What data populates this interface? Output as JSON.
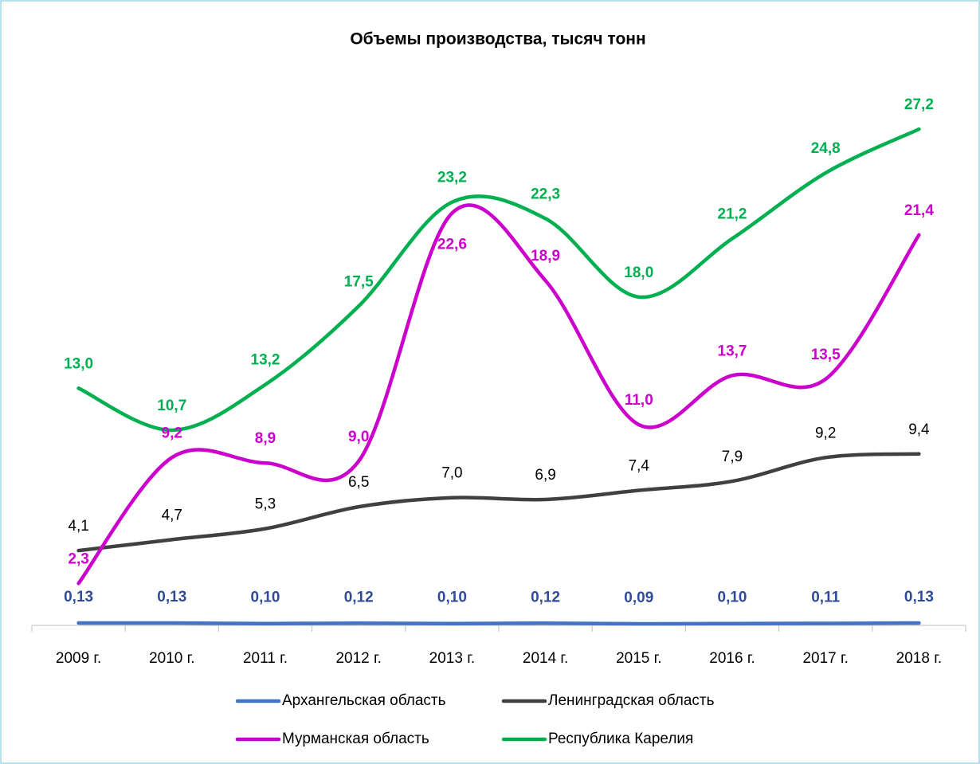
{
  "chart_data": {
    "type": "line",
    "title": "Объемы производства, тысяч тонн",
    "categories": [
      "2009 г.",
      "2010 г.",
      "2011 г.",
      "2012 г.",
      "2013 г.",
      "2014 г.",
      "2015 г.",
      "2016 г.",
      "2017 г.",
      "2018 г."
    ],
    "ylim": [
      0,
      30
    ],
    "legend": "bottom",
    "series": [
      {
        "name": "Архангельская область",
        "color": "#4472c4",
        "label_color": "#2f4b9a",
        "values": [
          0.13,
          0.13,
          0.1,
          0.12,
          0.1,
          0.12,
          0.09,
          0.1,
          0.11,
          0.13
        ],
        "value_labels": [
          "0,13",
          "0,13",
          "0,10",
          "0,12",
          "0,10",
          "0,12",
          "0,09",
          "0,10",
          "0,11",
          "0,13"
        ]
      },
      {
        "name": "Ленинградская область",
        "color": "#404040",
        "label_color": "#000000",
        "values": [
          4.1,
          4.7,
          5.3,
          6.5,
          7.0,
          6.9,
          7.4,
          7.9,
          9.2,
          9.4
        ],
        "value_labels": [
          "4,1",
          "4,7",
          "5,3",
          "6,5",
          "7,0",
          "6,9",
          "7,4",
          "7,9",
          "9,2",
          "9,4"
        ]
      },
      {
        "name": "Мурманская область",
        "color": "#cc00cc",
        "label_color": "#cc00cc",
        "values": [
          2.3,
          9.2,
          8.9,
          9.0,
          22.6,
          18.9,
          11.0,
          13.7,
          13.5,
          21.4
        ],
        "value_labels": [
          "2,3",
          "9,2",
          "8,9",
          "9,0",
          "22,6",
          "18,9",
          "11,0",
          "13,7",
          "13,5",
          "21,4"
        ]
      },
      {
        "name": "Республика Карелия",
        "color": "#00b050",
        "label_color": "#00b050",
        "values": [
          13.0,
          10.7,
          13.2,
          17.5,
          23.2,
          22.3,
          18.0,
          21.2,
          24.8,
          27.2
        ],
        "value_labels": [
          "13,0",
          "10,7",
          "13,2",
          "17,5",
          "23,2",
          "22,3",
          "18,0",
          "21,2",
          "24,8",
          "27,2"
        ]
      }
    ]
  }
}
